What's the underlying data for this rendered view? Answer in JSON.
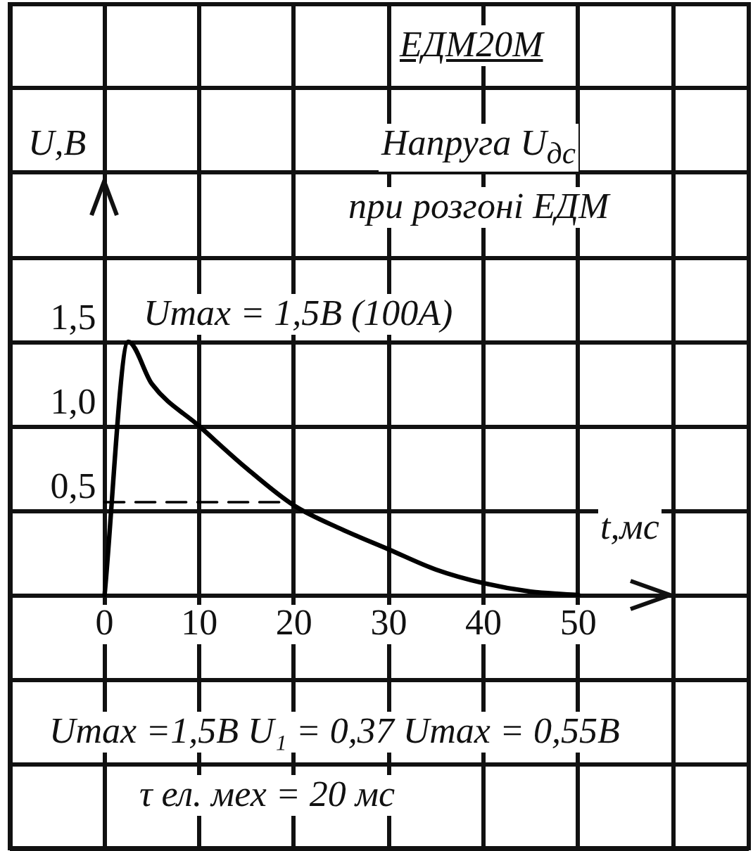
{
  "chart_data": {
    "type": "line",
    "title": "ЕДМ20М",
    "subtitle": "Напруга U$_{дс}$\nпри розгоні ЕДМ",
    "xlabel": "t,мс",
    "ylabel": "U,В",
    "annotations": [
      "Umax = 1,5В (100А)",
      "Umax =1,5В U₁ = 0,37  Umax = 0,55В",
      "τ  ел. мех = 20 мс"
    ],
    "series": [
      {
        "color": "#000000",
        "x": [
          0,
          2.5,
          5,
          10,
          15,
          20,
          25,
          30,
          35,
          40,
          45,
          50
        ],
        "values": [
          0,
          1.5,
          1.25,
          1.0,
          0.75,
          0.53,
          0.39,
          0.27,
          0.15,
          0.07,
          0.02,
          0
        ]
      },
      {
        "color": "#000000",
        "line_style": "dashed",
        "x": [
          0,
          20
        ],
        "values": [
          0.55,
          0.55
        ]
      }
    ],
    "xlim": [
      -10,
      68
    ],
    "xticks": [
      {
        "value": -10,
        "label": null
      },
      0,
      10,
      20,
      30,
      40,
      50,
      {
        "value": 60,
        "label": null
      }
    ],
    "ylim": [
      -1.5,
      3.5
    ],
    "yticks": [
      {
        "value": -1.5,
        "label": null
      },
      {
        "value": -1,
        "label": null
      },
      {
        "value": -0.5,
        "label": null
      },
      {
        "value": 0,
        "label": null
      },
      {
        "value": 0.5,
        "label": "0,5"
      },
      {
        "value": 1,
        "label": "1,0"
      },
      {
        "value": 1.5,
        "label": "1,5"
      },
      {
        "value": 2,
        "label": null
      },
      {
        "value": 2.5,
        "label": null
      },
      {
        "value": 3,
        "label": null
      }
    ],
    "grid": true,
    "marker": "none",
    "line_style": "solid",
    "legend": false
  }
}
